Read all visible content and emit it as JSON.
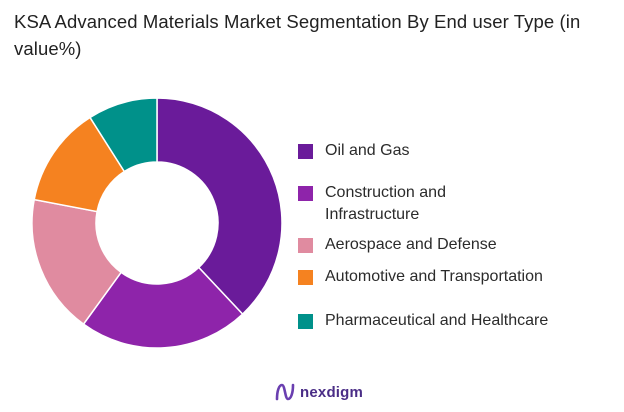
{
  "title": "KSA Advanced Materials Market Segmentation By End user Type (in value%)",
  "brand": {
    "name": "nexdigm",
    "color": "#4a2d86"
  },
  "chart_data": {
    "type": "pie",
    "donut": true,
    "legend_position": "right",
    "title": "KSA Advanced Materials Market Segmentation By End user Type (in value%)",
    "categories": [
      "Oil and Gas",
      "Construction and Infrastructure",
      "Aerospace and Defense",
      "Automotive and Transportation",
      "Pharmaceutical and Healthcare"
    ],
    "values": [
      38,
      22,
      18,
      13,
      9
    ],
    "colors": [
      "#6a1b9a",
      "#8e24aa",
      "#e08ba0",
      "#f58220",
      "#00918a"
    ],
    "legend_labels": [
      [
        "Oil and Gas"
      ],
      [
        "Construction and",
        "Infrastructure"
      ],
      [
        "Aerospace and Defense"
      ],
      [
        "Automotive and Transportation"
      ],
      [
        "Pharmaceutical and Healthcare"
      ]
    ]
  }
}
